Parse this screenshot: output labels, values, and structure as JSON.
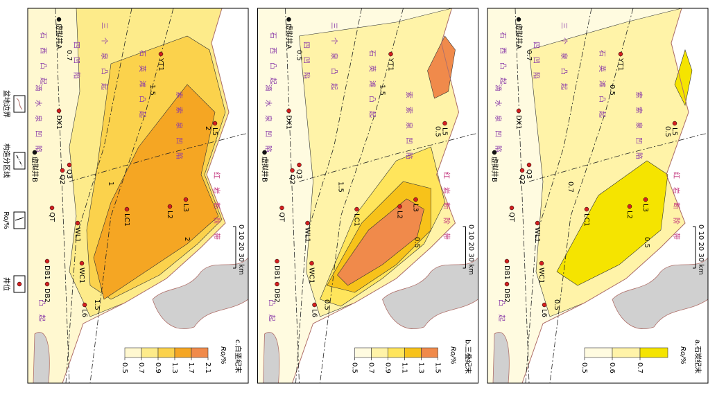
{
  "legend": {
    "items": [
      "盆地边界",
      "构造分区线",
      "Ro/%",
      "井位"
    ]
  },
  "ro_label": "Ro/%",
  "scale_label": "0 10 20 30 km",
  "wells": [
    "虚拟井A",
    "YT1",
    "DX1",
    "虚拟井B",
    "Q3",
    "Q2",
    "QT",
    "WL1",
    "LC1",
    "L2",
    "L3",
    "L5",
    "DB1",
    "WC1",
    "DB2",
    "L6"
  ],
  "regions": [
    "三个泉凸起",
    "石西凸起",
    "石英滩凸起",
    "四凹陷",
    "滴水泉凹陷",
    "索索泉凹陷",
    "红岩断阶带",
    "凸起"
  ],
  "panels": [
    {
      "caption": "c.白垩纪末",
      "ticks": [
        0.5,
        0.7,
        0.9,
        1.3,
        1.7,
        2.1
      ],
      "colors": [
        "#fff8d0",
        "#fdeb8a",
        "#fbd24c",
        "#f5a623",
        "#f08a4b"
      ],
      "contour_labels": [
        "0.7",
        "1.5",
        "2",
        "1",
        "1.5",
        "2"
      ]
    },
    {
      "caption": "b.三叠纪末",
      "ticks": [
        0.5,
        0.7,
        0.9,
        1.1,
        1.3,
        1.5
      ],
      "colors": [
        "#fffbe0",
        "#fff3a8",
        "#ffe55c",
        "#f7c21a",
        "#f08a4b"
      ],
      "contour_labels": [
        "0.5",
        "1.5",
        "0.5",
        "1.5",
        "0.5",
        "0.5"
      ]
    },
    {
      "caption": "a.石炭纪末",
      "ticks": [
        0.5,
        0.6,
        0.7
      ],
      "colors": [
        "#fffbe0",
        "#fff3a8",
        "#f5e400"
      ],
      "contour_labels": [
        "0.7",
        "0.5",
        "0.5",
        "0.7",
        "0.5",
        "0.5"
      ]
    }
  ]
}
